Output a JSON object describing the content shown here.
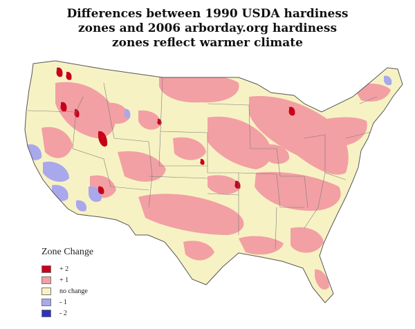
{
  "title_lines": [
    "Differences between 1990 USDA hardiness",
    "zones and 2006 arborday.org hardiness",
    "zones reflect warmer climate"
  ],
  "legend": {
    "title": "Zone Change",
    "items": [
      {
        "label": "+ 2",
        "color": "#c8001a"
      },
      {
        "label": "+ 1",
        "color": "#f2a0a4"
      },
      {
        "label": "no change",
        "color": "#f7f2c4"
      },
      {
        "label": "- 1",
        "color": "#a9a8ec"
      },
      {
        "label": "- 2",
        "color": "#2e33b8"
      }
    ]
  },
  "colors": {
    "border": "#555555",
    "state_lines": "#7a7a7a"
  }
}
